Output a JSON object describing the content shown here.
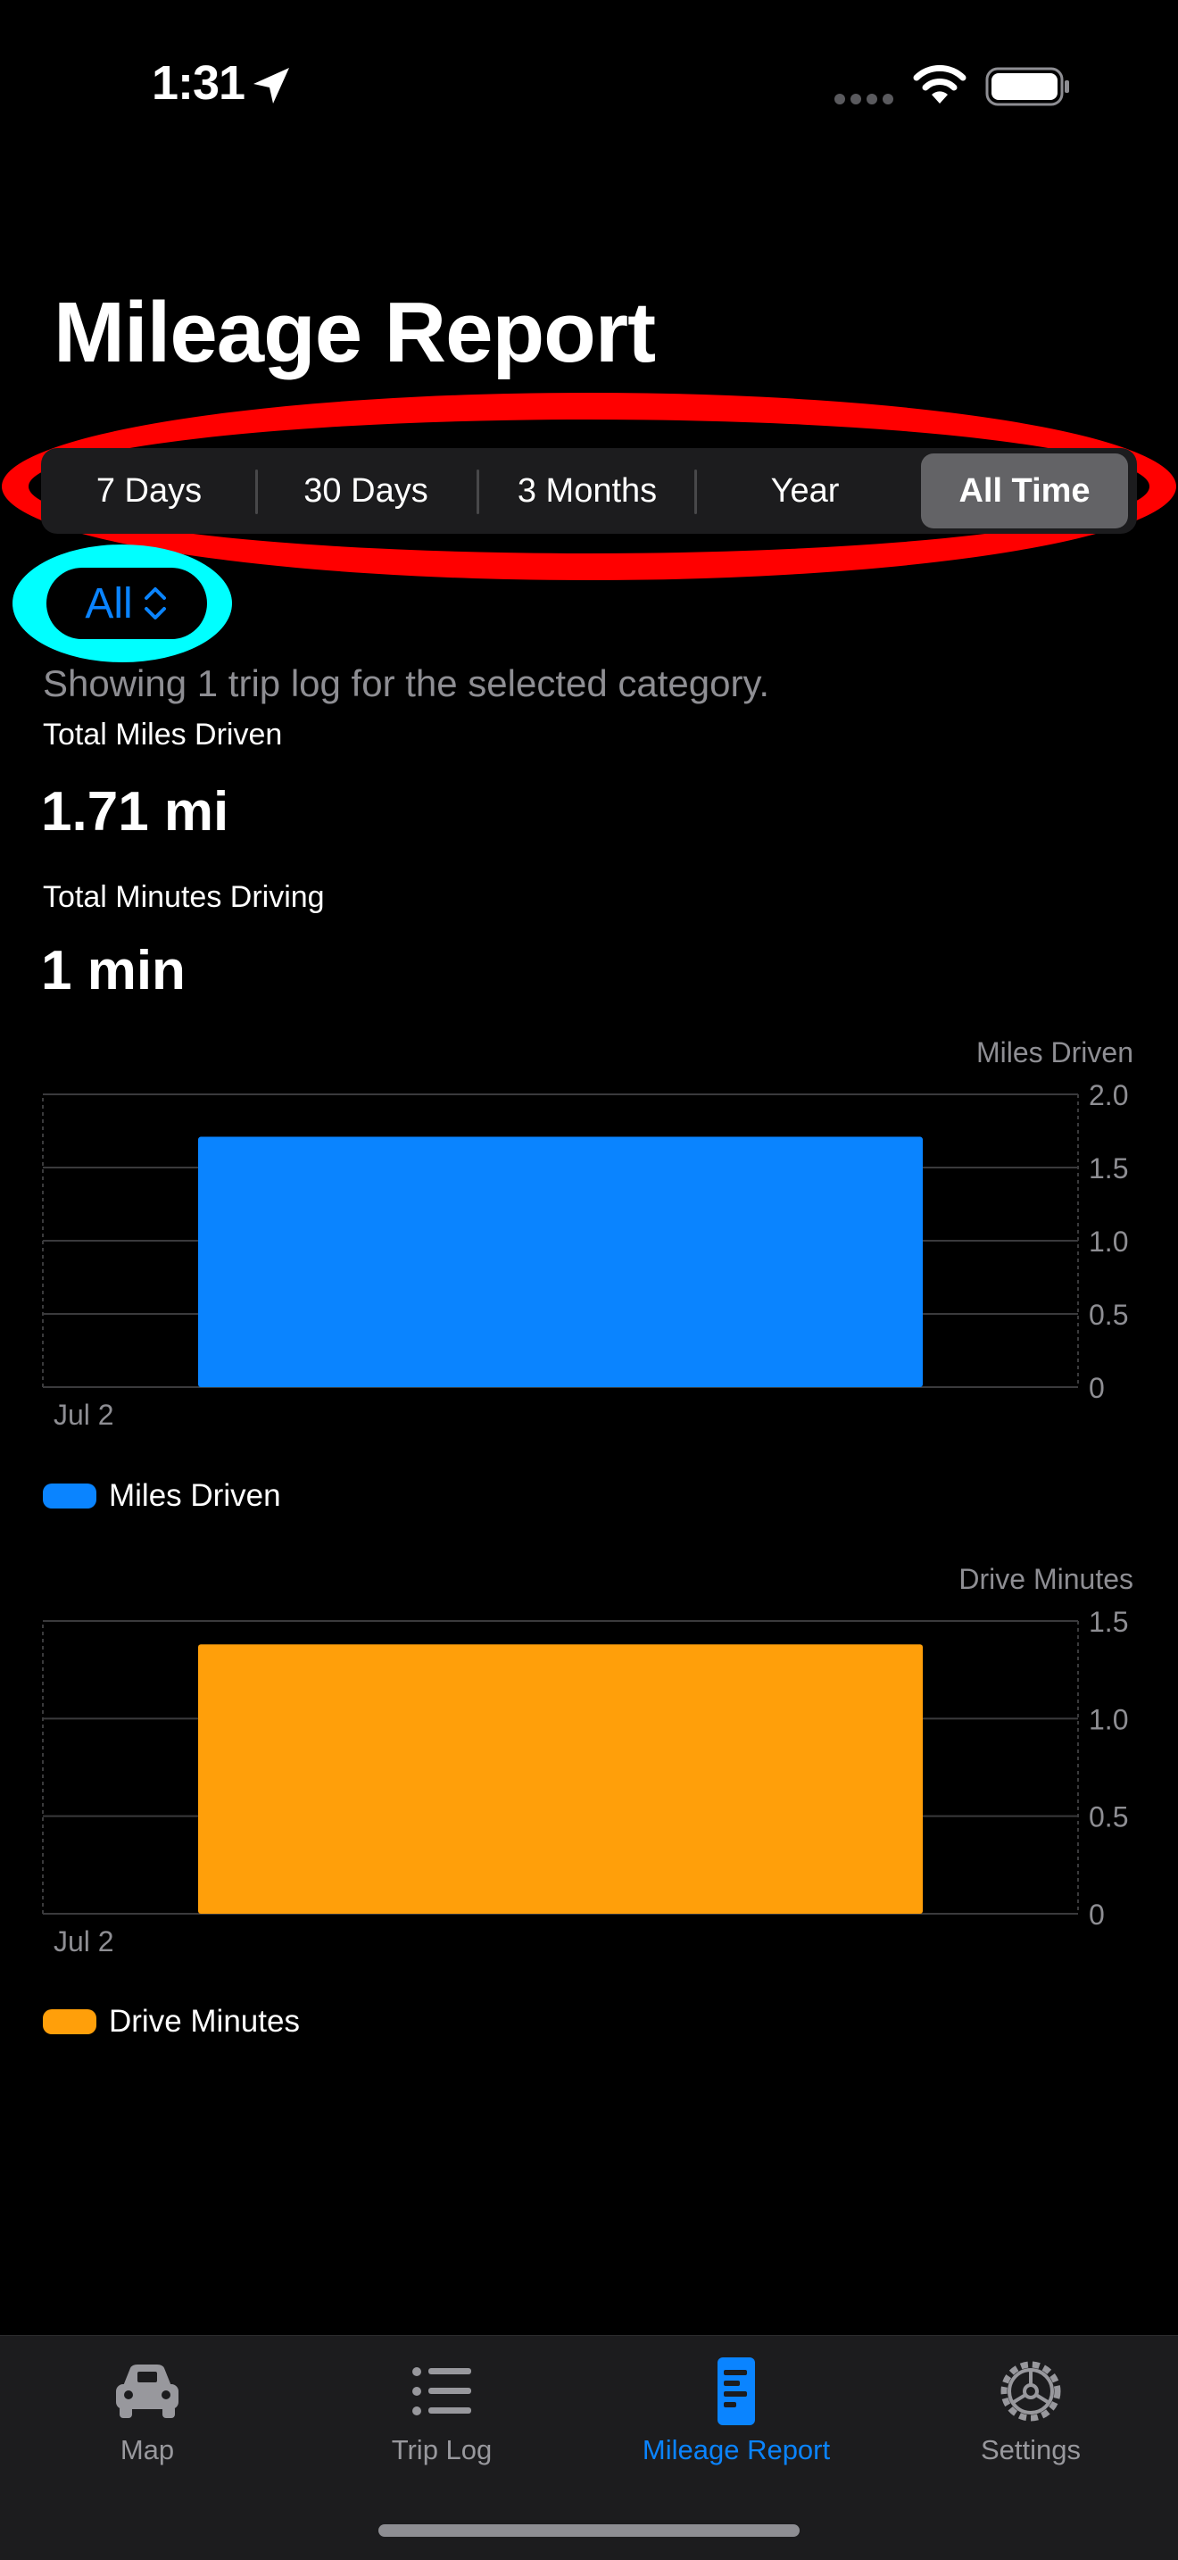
{
  "status_bar": {
    "time": "1:31"
  },
  "page": {
    "title": "Mileage Report"
  },
  "segmented": {
    "options": [
      "7 Days",
      "30 Days",
      "3 Months",
      "Year",
      "All Time"
    ],
    "selected_index": 4
  },
  "category_picker": {
    "value": "All"
  },
  "summary": {
    "showing_text": "Showing 1 trip log for the selected category.",
    "miles_label": "Total Miles Driven",
    "miles_value": "1.71 mi",
    "minutes_label": "Total Minutes Driving",
    "minutes_value": "1 min"
  },
  "colors": {
    "accent": "#0a84ff",
    "miles_bar": "#0a84ff",
    "minutes_bar": "#ff9f0a",
    "background": "#000000"
  },
  "chart_data": [
    {
      "type": "bar",
      "title": "Miles Driven",
      "categories": [
        "Jul 2"
      ],
      "x_tick_labels": [
        "Jul 2"
      ],
      "series": [
        {
          "name": "Miles Driven",
          "values": [
            1.71
          ]
        }
      ],
      "ylim": [
        0,
        2.0
      ],
      "y_ticks": [
        0,
        0.5,
        1.0,
        1.5,
        2.0
      ],
      "y_tick_labels": [
        "0",
        "0.5",
        "1.0",
        "1.5",
        "2.0"
      ],
      "grid": true,
      "y_axis_side": "right",
      "legend": "bottom-left",
      "color": "#0a84ff"
    },
    {
      "type": "bar",
      "title": "Drive Minutes",
      "categories": [
        "Jul 2"
      ],
      "x_tick_labels": [
        "Jul 2"
      ],
      "series": [
        {
          "name": "Drive Minutes",
          "values": [
            1.38
          ]
        }
      ],
      "ylim": [
        0,
        1.5
      ],
      "y_ticks": [
        0,
        0.5,
        1.0,
        1.5
      ],
      "y_tick_labels": [
        "0",
        "0.5",
        "1.0",
        "1.5"
      ],
      "grid": true,
      "y_axis_side": "right",
      "legend": "bottom-left",
      "color": "#ff9f0a"
    }
  ],
  "tab_bar": {
    "tabs": [
      {
        "label": "Map",
        "icon": "car-icon"
      },
      {
        "label": "Trip Log",
        "icon": "list-icon"
      },
      {
        "label": "Mileage Report",
        "icon": "report-icon"
      },
      {
        "label": "Settings",
        "icon": "gear-icon"
      }
    ],
    "active_index": 2
  }
}
